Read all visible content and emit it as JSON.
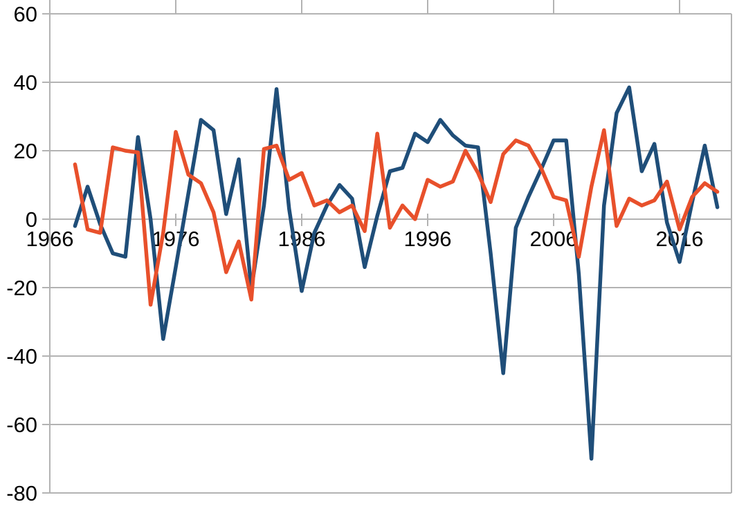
{
  "chart_data": {
    "type": "line",
    "title": "",
    "xlabel": "",
    "ylabel": "",
    "legend": "none",
    "grid": true,
    "background": "#ffffff",
    "gridline_color": "#b3b3b3",
    "axis_color": "#b3b3b3",
    "label_color": "#000000",
    "ylim": [
      -80,
      60
    ],
    "ytick_step": 20,
    "y_tick_labels": [
      "60",
      "40",
      "20",
      "0",
      "-20",
      "-40",
      "-60",
      "-80"
    ],
    "y_tick_values": [
      60,
      40,
      20,
      0,
      -20,
      -40,
      -60,
      -80
    ],
    "x_tick_labels": [
      "1966",
      "1976",
      "1986",
      "1996",
      "2006",
      "2016"
    ],
    "x_tick_values": [
      1966,
      1976,
      1986,
      1996,
      2006,
      2016
    ],
    "x_range_shown": [
      1966,
      2020
    ],
    "x": [
      1968,
      1969,
      1970,
      1971,
      1972,
      1973,
      1974,
      1975,
      1976,
      1977,
      1978,
      1979,
      1980,
      1981,
      1982,
      1983,
      1984,
      1985,
      1986,
      1987,
      1988,
      1989,
      1990,
      1991,
      1992,
      1993,
      1994,
      1995,
      1996,
      1997,
      1998,
      1999,
      2000,
      2001,
      2002,
      2003,
      2004,
      2005,
      2006,
      2007,
      2008,
      2009,
      2010,
      2011,
      2012,
      2013,
      2014,
      2015,
      2016,
      2017,
      2018,
      2019
    ],
    "series": [
      {
        "name": "blue-series",
        "color": "#1F4E79",
        "stroke_width": 5.5,
        "values": [
          -2,
          9.5,
          -1.5,
          -10,
          -11,
          24,
          0,
          -35,
          -14,
          7.5,
          29,
          26,
          1.5,
          17.5,
          -20.5,
          4,
          38,
          3,
          -21,
          -4,
          4,
          10,
          6,
          -14,
          1,
          14,
          15,
          25,
          22.5,
          29,
          24.5,
          21.5,
          21,
          -10,
          -45,
          -2.5,
          6.5,
          14.5,
          23,
          23,
          -16,
          -70,
          4,
          31,
          38.5,
          14,
          22,
          -1,
          -12.5,
          5,
          21.5,
          3.5
        ]
      },
      {
        "name": "orange-series",
        "color": "#E8502B",
        "stroke_width": 5.5,
        "values": [
          16,
          -3,
          -4,
          21,
          20,
          19.5,
          -25,
          -4,
          25.5,
          13,
          10.5,
          2,
          -15.5,
          -6.5,
          -23.5,
          20.5,
          21.5,
          11.5,
          13.5,
          4,
          5.5,
          2,
          4,
          -3.5,
          25,
          -2.5,
          4,
          0,
          11.5,
          9.5,
          11,
          20,
          13.5,
          5,
          19,
          23,
          21.5,
          15,
          6.5,
          5.5,
          -11,
          9.5,
          26,
          -2,
          6,
          4,
          5.5,
          11,
          -3,
          6.5,
          10.5,
          8
        ]
      }
    ]
  },
  "layout_note_values_visible_only": true
}
